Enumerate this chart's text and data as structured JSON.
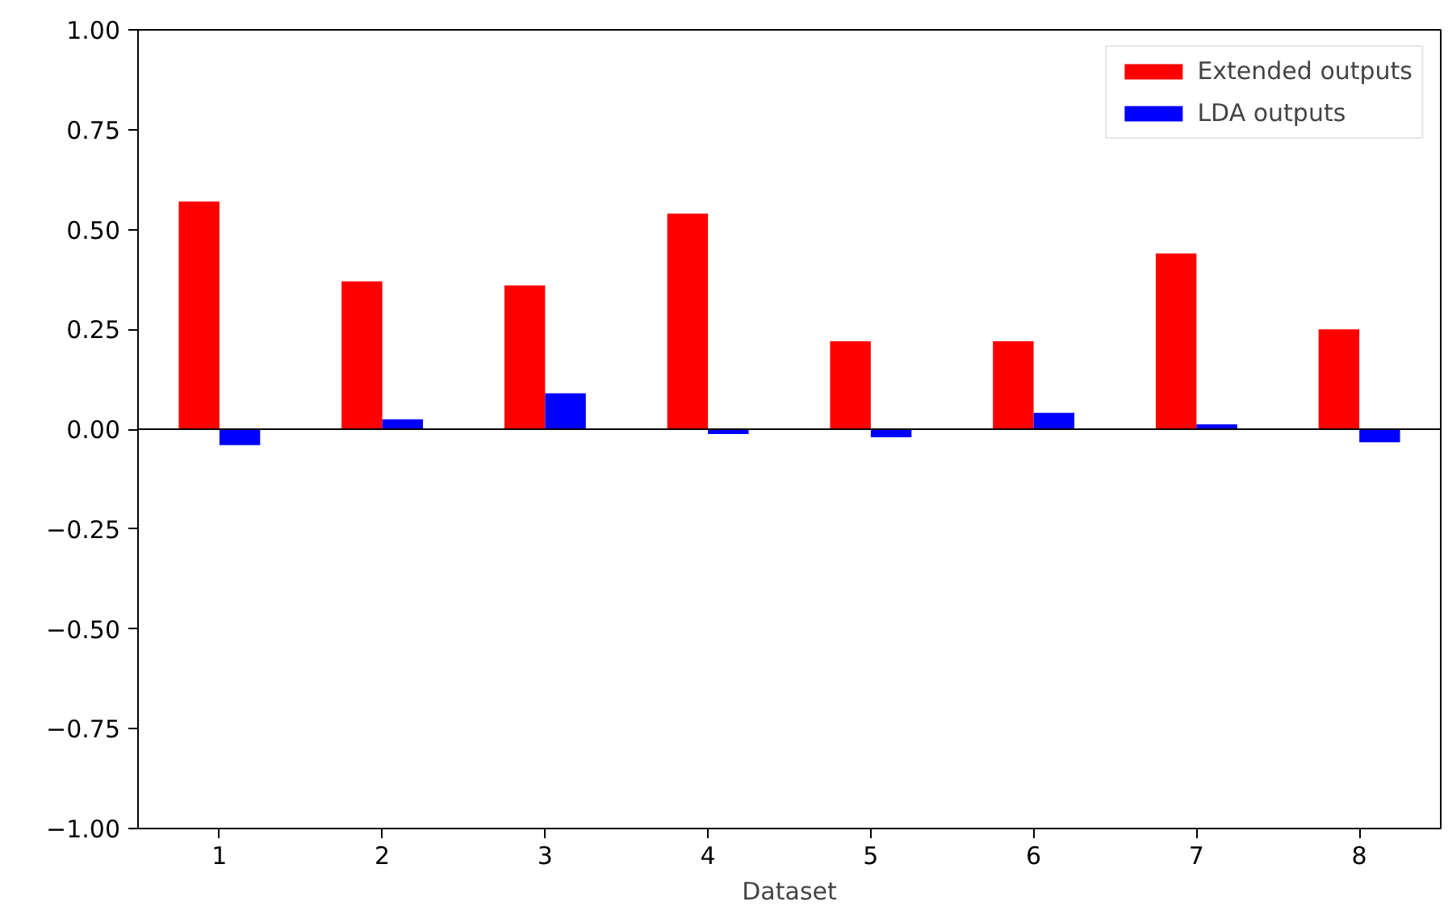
{
  "chart_data": {
    "type": "bar",
    "xlabel": "Dataset",
    "categories": [
      "1",
      "2",
      "3",
      "4",
      "5",
      "6",
      "7",
      "8"
    ],
    "series": [
      {
        "name": "Extended outputs",
        "color": "#ff0000",
        "values": [
          0.57,
          0.37,
          0.36,
          0.54,
          0.22,
          0.22,
          0.44,
          0.25
        ]
      },
      {
        "name": "LDA outputs",
        "color": "#0000ff",
        "values": [
          -0.04,
          0.025,
          0.09,
          -0.012,
          -0.02,
          0.041,
          0.012,
          -0.033
        ]
      }
    ],
    "ylim": [
      -1.0,
      1.0
    ],
    "yticks": [
      {
        "value": -1.0,
        "label": "−1.00"
      },
      {
        "value": -0.75,
        "label": "−0.75"
      },
      {
        "value": -0.5,
        "label": "−0.50"
      },
      {
        "value": -0.25,
        "label": "−0.25"
      },
      {
        "value": 0,
        "label": "0.00"
      },
      {
        "value": 0.25,
        "label": "0.25"
      },
      {
        "value": 0.5,
        "label": "0.50"
      },
      {
        "value": 0.75,
        "label": "0.75"
      },
      {
        "value": 1.0,
        "label": "1.00"
      }
    ],
    "ref_lines": [
      {
        "axis": "y",
        "value": 0,
        "color": "#000000"
      }
    ],
    "legend": "top right",
    "grid": false
  }
}
